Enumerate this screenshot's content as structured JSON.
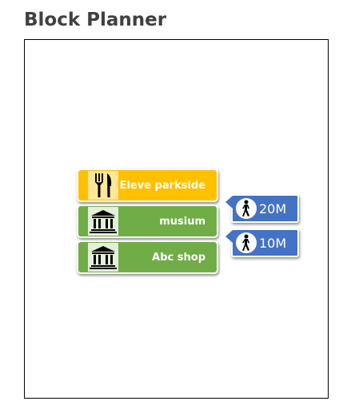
{
  "page": {
    "title": "Block Planner"
  },
  "blocks": [
    {
      "label": "Eleve parkside",
      "icon": "fork-knife-icon",
      "color": "#ffc000",
      "icon_bg": "#ffe699"
    },
    {
      "label": "musium",
      "icon": "museum-icon",
      "color": "#70ad47",
      "icon_bg": "#e2f0d9"
    },
    {
      "label": "Abc shop",
      "icon": "museum-icon",
      "color": "#70ad47",
      "icon_bg": "#e2f0d9"
    }
  ],
  "walks": [
    {
      "distance": "20M",
      "icon": "walking-person-icon",
      "color": "#4472c4"
    },
    {
      "distance": "10M",
      "icon": "walking-person-icon",
      "color": "#4472c4"
    }
  ]
}
